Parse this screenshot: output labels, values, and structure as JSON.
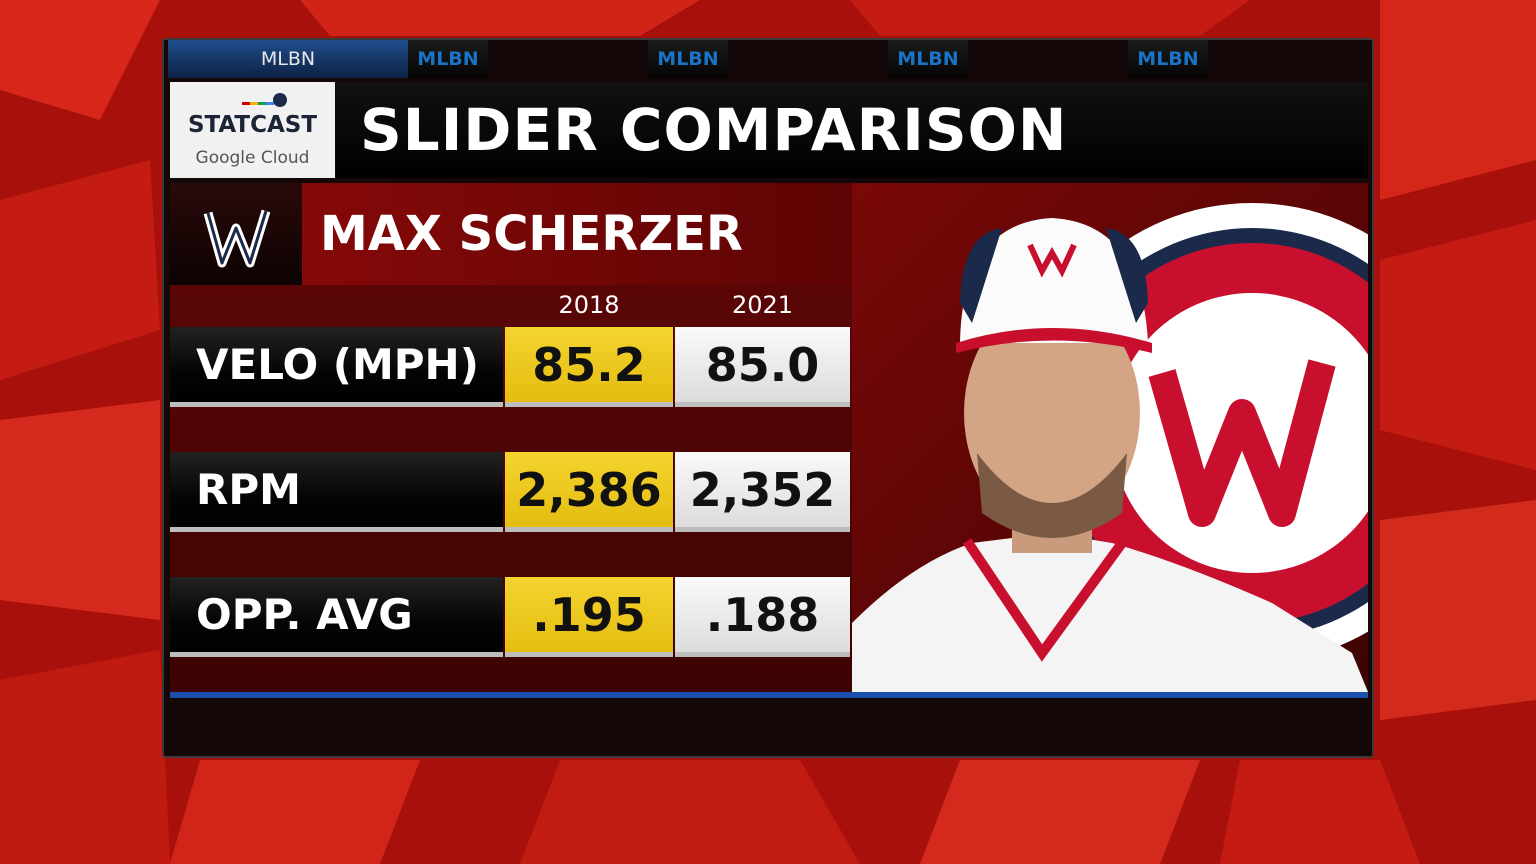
{
  "tabs": [
    "MLBN",
    "MLBN",
    "MLBN",
    "MLBN",
    "MLBN"
  ],
  "logo": {
    "name": "STATCAST",
    "sponsor": "Google Cloud"
  },
  "title": "SLIDER COMPARISON",
  "player": "MAX SCHERZER",
  "table": {
    "columns": [
      "2018",
      "2021"
    ],
    "rows": [
      [
        "VELO (MPH)",
        "85.2",
        "85.0"
      ],
      [
        "RPM",
        "2,386",
        "2,352"
      ],
      [
        "OPP. AVG",
        ".195",
        ".188"
      ]
    ]
  }
}
